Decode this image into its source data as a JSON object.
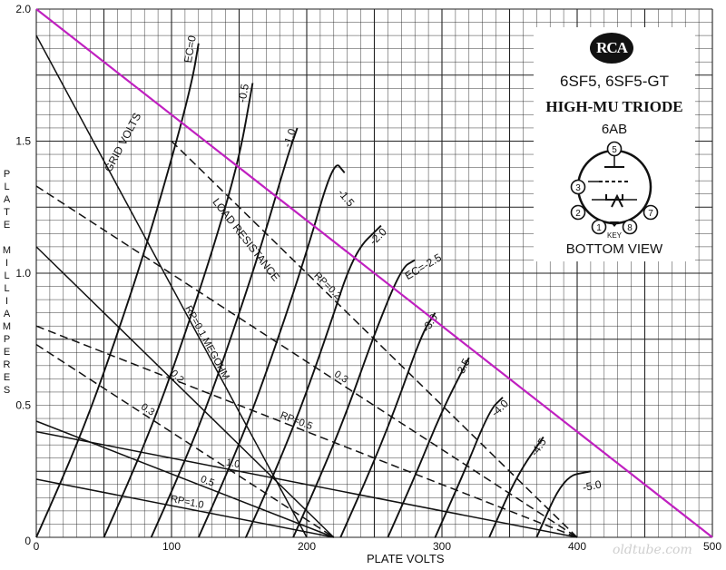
{
  "datasheet": {
    "logo_text": "RCA",
    "tube_types": "6SF5, 6SF5-GT",
    "description": "HIGH-MU TRIODE",
    "basing": "6AB",
    "view": "BOTTOM VIEW",
    "pin_labels": [
      "1",
      "2",
      "3",
      "5",
      "7",
      "8"
    ],
    "key_label": "KEY"
  },
  "watermark": "oldtube.com",
  "chart_data": {
    "type": "line",
    "xlabel": "PLATE VOLTS",
    "ylabel": "PLATE MILLIAMPERES",
    "xlim": [
      0,
      500
    ],
    "ylim": [
      0,
      2.0
    ],
    "x_ticks": [
      "0",
      "100",
      "200",
      "300",
      "400",
      "500"
    ],
    "y_ticks": [
      "0",
      "0.5",
      "1.0",
      "1.5",
      "2.0"
    ],
    "grid": true,
    "grid_minor_x": 10,
    "grid_minor_y": 0.05,
    "label_grid_volts": "GRID VOLTS",
    "label_load": "LOAD RESISTANCE",
    "grid_curves": [
      {
        "name": "EC=0",
        "points": [
          [
            0,
            0
          ],
          [
            20,
            0.23
          ],
          [
            40,
            0.48
          ],
          [
            60,
            0.77
          ],
          [
            80,
            1.08
          ],
          [
            100,
            1.43
          ],
          [
            115,
            1.72
          ],
          [
            120,
            1.87
          ]
        ]
      },
      {
        "name": "-0.5",
        "points": [
          [
            50,
            0
          ],
          [
            70,
            0.23
          ],
          [
            90,
            0.48
          ],
          [
            110,
            0.77
          ],
          [
            130,
            1.08
          ],
          [
            150,
            1.43
          ],
          [
            160,
            1.72
          ]
        ]
      },
      {
        "name": "-1.0",
        "points": [
          [
            85,
            0
          ],
          [
            105,
            0.23
          ],
          [
            125,
            0.48
          ],
          [
            145,
            0.77
          ],
          [
            165,
            1.08
          ],
          [
            185,
            1.43
          ],
          [
            193,
            1.55
          ]
        ]
      },
      {
        "name": "-1.5",
        "points": [
          [
            120,
            0
          ],
          [
            140,
            0.23
          ],
          [
            160,
            0.48
          ],
          [
            180,
            0.77
          ],
          [
            200,
            1.08
          ],
          [
            220,
            1.43
          ],
          [
            228,
            1.38
          ]
        ]
      },
      {
        "name": "-2.0",
        "points": [
          [
            155,
            0
          ],
          [
            175,
            0.23
          ],
          [
            195,
            0.48
          ],
          [
            215,
            0.77
          ],
          [
            235,
            1.08
          ],
          [
            255,
            1.18
          ]
        ]
      },
      {
        "name": "EC=-2.5",
        "points": [
          [
            190,
            0
          ],
          [
            210,
            0.23
          ],
          [
            230,
            0.48
          ],
          [
            250,
            0.77
          ],
          [
            270,
            1.02
          ],
          [
            280,
            1.05
          ]
        ]
      },
      {
        "name": "-3.0",
        "points": [
          [
            225,
            0
          ],
          [
            245,
            0.23
          ],
          [
            265,
            0.48
          ],
          [
            285,
            0.77
          ],
          [
            295,
            0.85
          ]
        ]
      },
      {
        "name": "-3.5",
        "points": [
          [
            260,
            0
          ],
          [
            280,
            0.23
          ],
          [
            300,
            0.48
          ],
          [
            320,
            0.68
          ]
        ]
      },
      {
        "name": "-4.0",
        "points": [
          [
            295,
            0
          ],
          [
            315,
            0.23
          ],
          [
            335,
            0.48
          ],
          [
            345,
            0.53
          ]
        ]
      },
      {
        "name": "-4.5",
        "points": [
          [
            335,
            0
          ],
          [
            355,
            0.23
          ],
          [
            375,
            0.38
          ]
        ]
      },
      {
        "name": "-5.0",
        "points": [
          [
            370,
            0
          ],
          [
            390,
            0.23
          ],
          [
            410,
            0.25
          ]
        ]
      }
    ],
    "load_lines": [
      {
        "name": "RP=0.1 MEGOHM",
        "style": "solid",
        "points": [
          [
            0,
            1.9
          ],
          [
            200,
            0
          ]
        ]
      },
      {
        "name": "0.2",
        "style": "solid",
        "points": [
          [
            0,
            1.1
          ],
          [
            220,
            0
          ]
        ]
      },
      {
        "name": "0.3",
        "style": "dashed",
        "points": [
          [
            0,
            0.73
          ],
          [
            220,
            0
          ]
        ]
      },
      {
        "name": "0.5",
        "style": "solid",
        "points": [
          [
            0,
            0.44
          ],
          [
            220,
            0
          ]
        ]
      },
      {
        "name": "RP=1.0",
        "style": "solid",
        "points": [
          [
            0,
            0.22
          ],
          [
            220,
            0
          ]
        ]
      },
      {
        "name": "RP=0.2",
        "style": "dashed",
        "points": [
          [
            100,
            1.5
          ],
          [
            400,
            0
          ]
        ]
      },
      {
        "name": "0.3",
        "style": "dashed",
        "points": [
          [
            0,
            1.33
          ],
          [
            400,
            0
          ]
        ]
      },
      {
        "name": "RP=0.5",
        "style": "dashed",
        "points": [
          [
            0,
            0.8
          ],
          [
            400,
            0
          ]
        ]
      },
      {
        "name": "1.0",
        "style": "solid",
        "points": [
          [
            0,
            0.4
          ],
          [
            400,
            0
          ]
        ]
      }
    ],
    "dissipation_line": {
      "color": "#c020c0",
      "points": [
        [
          0,
          2.0
        ],
        [
          500,
          0
        ]
      ]
    }
  }
}
